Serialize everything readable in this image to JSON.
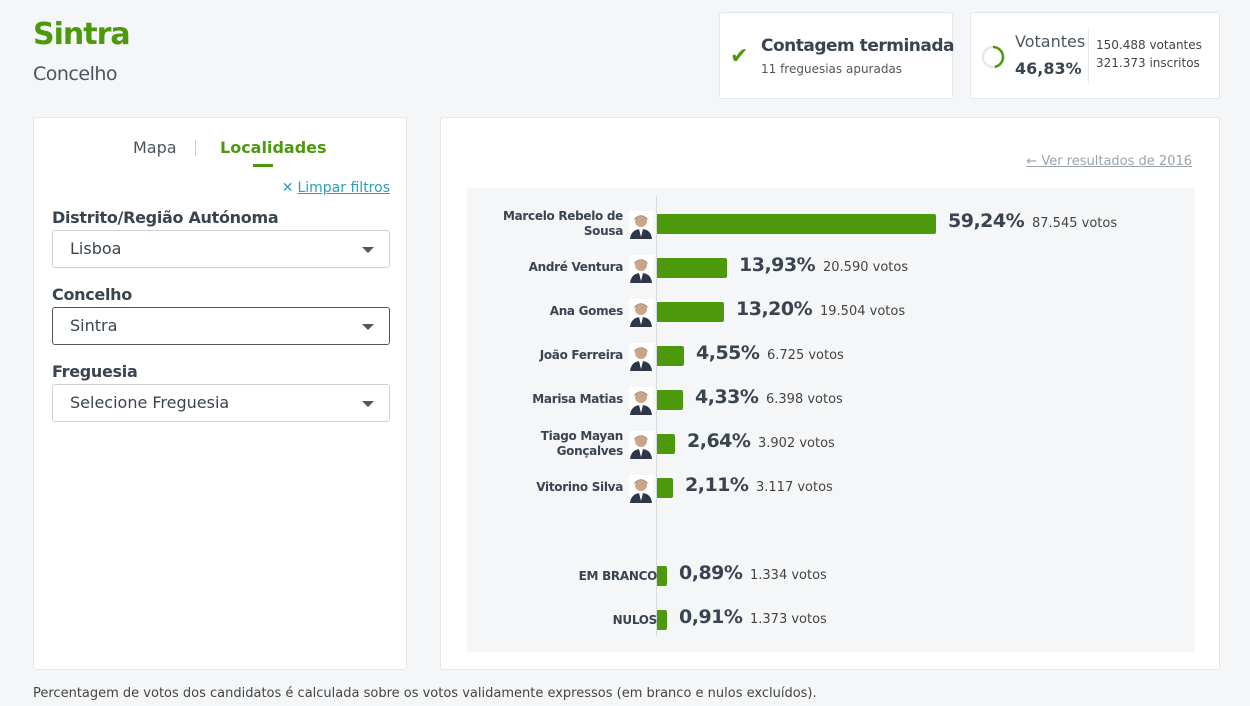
{
  "header": {
    "title": "Sintra",
    "subtitle": "Concelho"
  },
  "status": {
    "icon": "check-icon",
    "title": "Contagem terminada",
    "detail": "11 freguesias apuradas"
  },
  "turnout": {
    "label": "Votantes",
    "percent": "46,83%",
    "percent_value": 46.83,
    "voters": "150.488 votantes",
    "registered": "321.373 inscritos"
  },
  "filters": {
    "tabs": [
      {
        "label": "Mapa"
      },
      {
        "label": "Localidades",
        "active": true
      }
    ],
    "clear_label": "Limpar filtros",
    "fields": [
      {
        "label": "Distrito/Região Autónoma",
        "value": "Lisboa"
      },
      {
        "label": "Concelho",
        "value": "Sintra"
      },
      {
        "label": "Freguesia",
        "value": "Selecione Freguesia"
      }
    ]
  },
  "results": {
    "previous_link": "Ver resultados de 2016"
  },
  "chart_data": {
    "type": "bar",
    "orientation": "horizontal",
    "color": "#4c9a0c",
    "categories": [
      "Marcelo Rebelo de Sousa",
      "André Ventura",
      "Ana Gomes",
      "João Ferreira",
      "Marisa Matias",
      "Tiago Mayan Gonçalves",
      "Vitorino Silva",
      "EM BRANCO",
      "NULOS"
    ],
    "values": [
      59.24,
      13.93,
      13.2,
      4.55,
      4.33,
      2.64,
      2.11,
      0.89,
      0.91
    ],
    "pct_labels": [
      "59,24%",
      "13,93%",
      "13,20%",
      "4,55%",
      "4,33%",
      "2,64%",
      "2,11%",
      "0,89%",
      "0,91%"
    ],
    "vote_labels": [
      "87.545 votos",
      "20.590 votos",
      "19.504 votos",
      "6.725 votos",
      "6.398 votos",
      "3.902 votos",
      "3.117 votos",
      "1.334 votos",
      "1.373 votos"
    ]
  },
  "footnote": "Percentagem de votos dos candidatos é calculada sobre os votos validamente expressos (em branco e nulos excluídos)."
}
